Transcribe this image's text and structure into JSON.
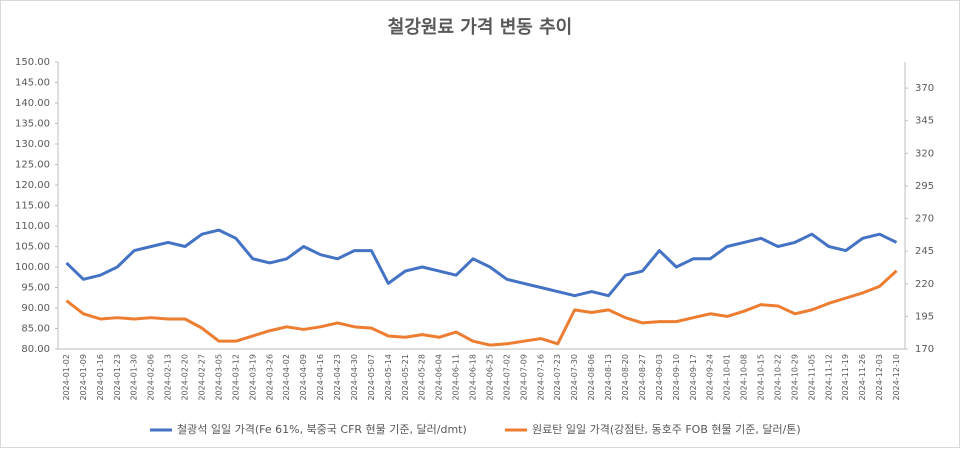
{
  "chart_data": {
    "type": "line",
    "title": "철강원료 가격 변동 추이",
    "categories": [
      "2024-01-02",
      "2024-01-09",
      "2024-01-16",
      "2024-01-23",
      "2024-01-30",
      "2024-02-06",
      "2024-02-13",
      "2024-02-20",
      "2024-02-27",
      "2024-03-05",
      "2024-03-12",
      "2024-03-19",
      "2024-03-26",
      "2024-04-02",
      "2024-04-09",
      "2024-04-16",
      "2024-04-23",
      "2024-04-30",
      "2024-05-07",
      "2024-05-14",
      "2024-05-21",
      "2024-05-28",
      "2024-06-04",
      "2024-06-11",
      "2024-06-18",
      "2024-06-25",
      "2024-07-02",
      "2024-07-09",
      "2024-07-16",
      "2024-07-23",
      "2024-07-30",
      "2024-08-06",
      "2024-08-13",
      "2024-08-20",
      "2024-08-27",
      "2024-09-03",
      "2024-09-10",
      "2024-09-17",
      "2024-09-24",
      "2024-10-01",
      "2024-10-08",
      "2024-10-15",
      "2024-10-22",
      "2024-10-29",
      "2024-11-05",
      "2024-11-12",
      "2024-11-19",
      "2024-11-26",
      "2024-12-03",
      "2024-12-10"
    ],
    "series": [
      {
        "name": "철광석 일일 가격(Fe 61%, 북중국 CFR 현물 기준, 달러/dmt)",
        "color": "#4472c4",
        "values": [
          101,
          97,
          98,
          100,
          104,
          105,
          106,
          105,
          108,
          109,
          107,
          102,
          101,
          102,
          105,
          103,
          102,
          104,
          104,
          96,
          99,
          100,
          99,
          98,
          102,
          100,
          97,
          96,
          95,
          94,
          93,
          94,
          93,
          98,
          99,
          104,
          100,
          102,
          102,
          105,
          106,
          107,
          105,
          106,
          108,
          105,
          104,
          107,
          108,
          106
        ]
      },
      {
        "name": "원료탄 일일 가격(강점탄, 동호주 FOB 현물 기준, 달러/톤)",
        "color": "#ed7d31",
        "axis": "y2",
        "values": [
          207,
          197,
          193,
          194,
          193,
          194,
          193,
          193,
          186,
          176,
          176,
          180,
          184,
          187,
          185,
          187,
          190,
          187,
          186,
          180,
          179,
          181,
          179,
          183,
          176,
          173,
          174,
          176,
          178,
          174,
          200,
          198,
          200,
          194,
          190,
          191,
          191,
          194,
          197,
          195,
          199,
          204,
          203,
          197,
          200,
          205,
          209,
          213,
          218,
          230
        ]
      }
    ],
    "ylim": [
      80,
      150
    ],
    "yticks": [
      {
        "value": 80,
        "label": "80.00"
      },
      {
        "value": 85,
        "label": "85.00"
      },
      {
        "value": 90,
        "label": "90.00"
      },
      {
        "value": 95,
        "label": "95.00"
      },
      {
        "value": 100,
        "label": "100.00"
      },
      {
        "value": 105,
        "label": "105.00"
      },
      {
        "value": 110,
        "label": "110.00"
      },
      {
        "value": 115,
        "label": "115.00"
      },
      {
        "value": 120,
        "label": "120.00"
      },
      {
        "value": 125,
        "label": "125.00"
      },
      {
        "value": 130,
        "label": "130.00"
      },
      {
        "value": 135,
        "label": "135.00"
      },
      {
        "value": 140,
        "label": "140.00"
      },
      {
        "value": 145,
        "label": "145.00"
      },
      {
        "value": 150,
        "label": "150.00"
      }
    ],
    "y2lim": [
      170,
      390
    ],
    "y2ticks": [
      170,
      195,
      220,
      245,
      270,
      295,
      320,
      345,
      370
    ]
  }
}
